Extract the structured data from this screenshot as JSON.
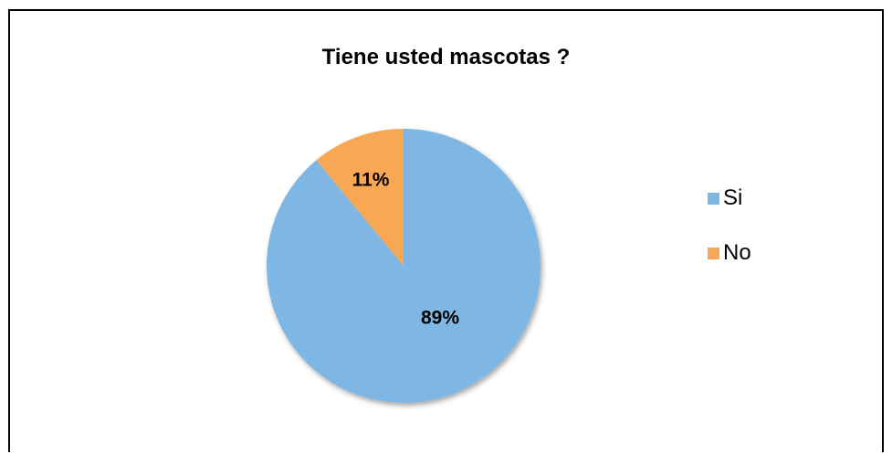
{
  "chart_data": {
    "type": "pie",
    "title": "Tiene usted mascotas ?",
    "categories": [
      "Si",
      "No"
    ],
    "values": [
      89,
      11
    ],
    "data_labels": [
      "89%",
      "11%"
    ],
    "colors": [
      "#7EB7E3",
      "#F8A855"
    ],
    "legend_position": "right"
  }
}
